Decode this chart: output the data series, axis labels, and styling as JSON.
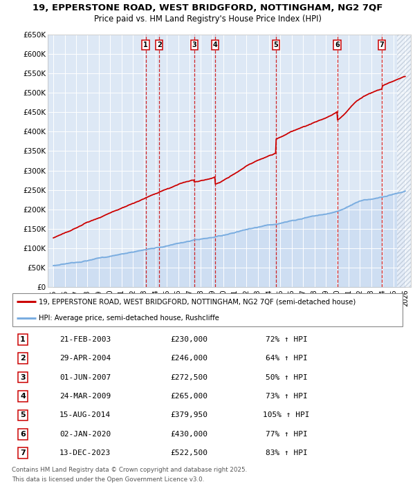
{
  "title_line1": "19, EPPERSTONE ROAD, WEST BRIDGFORD, NOTTINGHAM, NG2 7QF",
  "title_line2": "Price paid vs. HM Land Registry's House Price Index (HPI)",
  "xlim": [
    1994.5,
    2026.5
  ],
  "ylim": [
    0,
    650000
  ],
  "yticks": [
    0,
    50000,
    100000,
    150000,
    200000,
    250000,
    300000,
    350000,
    400000,
    450000,
    500000,
    550000,
    600000,
    650000
  ],
  "ytick_labels": [
    "£0",
    "£50K",
    "£100K",
    "£150K",
    "£200K",
    "£250K",
    "£300K",
    "£350K",
    "£400K",
    "£450K",
    "£500K",
    "£550K",
    "£600K",
    "£650K"
  ],
  "xticks": [
    1995,
    1996,
    1997,
    1998,
    1999,
    2000,
    2001,
    2002,
    2003,
    2004,
    2005,
    2006,
    2007,
    2008,
    2009,
    2010,
    2011,
    2012,
    2013,
    2014,
    2015,
    2016,
    2017,
    2018,
    2019,
    2020,
    2021,
    2022,
    2023,
    2024,
    2025,
    2026
  ],
  "red_line_color": "#cc0000",
  "blue_line_color": "#7aade0",
  "chart_bg_color": "#dde8f5",
  "sale_events": [
    {
      "num": 1,
      "year": 2003.13,
      "price": 230000
    },
    {
      "num": 2,
      "year": 2004.33,
      "price": 246000
    },
    {
      "num": 3,
      "year": 2007.42,
      "price": 272500
    },
    {
      "num": 4,
      "year": 2009.23,
      "price": 265000
    },
    {
      "num": 5,
      "year": 2014.62,
      "price": 379950
    },
    {
      "num": 6,
      "year": 2020.01,
      "price": 430000
    },
    {
      "num": 7,
      "year": 2023.95,
      "price": 522500
    }
  ],
  "legend_label_red": "19, EPPERSTONE ROAD, WEST BRIDGFORD, NOTTINGHAM, NG2 7QF (semi-detached house)",
  "legend_label_blue": "HPI: Average price, semi-detached house, Rushcliffe",
  "footer_line1": "Contains HM Land Registry data © Crown copyright and database right 2025.",
  "footer_line2": "This data is licensed under the Open Government Licence v3.0.",
  "table_rows": [
    {
      "num": "1",
      "date": "21-FEB-2003",
      "price": "£230,000",
      "pct": "72% ↑ HPI"
    },
    {
      "num": "2",
      "date": "29-APR-2004",
      "price": "£246,000",
      "pct": "64% ↑ HPI"
    },
    {
      "num": "3",
      "date": "01-JUN-2007",
      "price": "£272,500",
      "pct": "50% ↑ HPI"
    },
    {
      "num": "4",
      "date": "24-MAR-2009",
      "price": "£265,000",
      "pct": "73% ↑ HPI"
    },
    {
      "num": "5",
      "date": "15-AUG-2014",
      "price": "£379,950",
      "pct": "105% ↑ HPI"
    },
    {
      "num": "6",
      "date": "02-JAN-2020",
      "price": "£430,000",
      "pct": "77% ↑ HPI"
    },
    {
      "num": "7",
      "date": "13-DEC-2023",
      "price": "£522,500",
      "pct": "83% ↑ HPI"
    }
  ]
}
